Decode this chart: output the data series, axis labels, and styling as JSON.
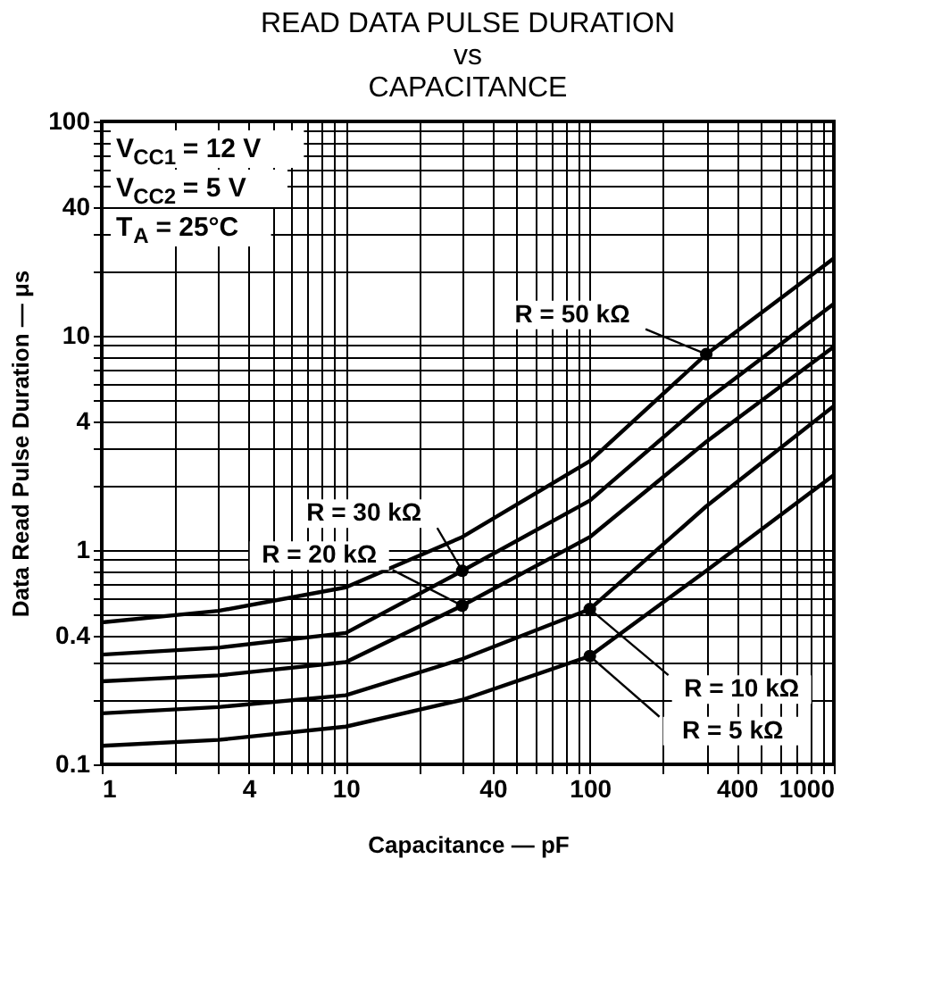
{
  "chart_data": {
    "type": "line",
    "title": "READ DATA PULSE DURATION\nvs\nCAPACITANCE",
    "xlabel": "Capacitance — pF",
    "ylabel": "Data Read Pulse Duration — μs",
    "annotations": [
      "V$_{CC1}$ = 12 V",
      "V$_{CC2}$ = 5 V",
      "T$_{A}$ = 25°C"
    ],
    "x": [
      1,
      3,
      10,
      30,
      100,
      300,
      1000
    ],
    "series": [
      {
        "name": "R = 50 kΩ",
        "color": "#000000",
        "values": [
          0.46,
          0.52,
          0.67,
          1.15,
          2.6,
          8.2,
          23
        ]
      },
      {
        "name": "R = 30 kΩ",
        "color": "#000000",
        "values": [
          0.325,
          0.35,
          0.41,
          0.8,
          1.7,
          5.0,
          14.1
        ]
      },
      {
        "name": "R = 20 kΩ",
        "color": "#000000",
        "values": [
          0.244,
          0.26,
          0.3,
          0.55,
          1.15,
          3.2,
          8.9
        ]
      },
      {
        "name": "R = 10 kΩ",
        "color": "#000000",
        "values": [
          0.173,
          0.185,
          0.21,
          0.31,
          0.53,
          1.6,
          4.7
        ]
      },
      {
        "name": "R = 5 kΩ",
        "color": "#000000",
        "values": [
          0.122,
          0.13,
          0.15,
          0.2,
          0.32,
          0.8,
          2.24
        ]
      }
    ],
    "log": "xy",
    "grid": true,
    "line_style": "solid",
    "xlim": [
      1,
      1000
    ],
    "ylim": [
      0.1,
      100
    ],
    "xticks": [
      1,
      {
        "value": 2,
        "label": null
      },
      {
        "value": 3,
        "label": null
      },
      4,
      {
        "value": 5,
        "label": null
      },
      {
        "value": 6,
        "label": null
      },
      {
        "value": 7,
        "label": null
      },
      {
        "value": 8,
        "label": null
      },
      {
        "value": 9,
        "label": null
      },
      10,
      {
        "value": 20,
        "label": null
      },
      {
        "value": 30,
        "label": null
      },
      40,
      {
        "value": 50,
        "label": null
      },
      {
        "value": 60,
        "label": null
      },
      {
        "value": 70,
        "label": null
      },
      {
        "value": 80,
        "label": null
      },
      {
        "value": 90,
        "label": null
      },
      100,
      {
        "value": 200,
        "label": null
      },
      {
        "value": 300,
        "label": null
      },
      400,
      {
        "value": 500,
        "label": null
      },
      {
        "value": 600,
        "label": null
      },
      {
        "value": 700,
        "label": null
      },
      {
        "value": 800,
        "label": null
      },
      {
        "value": 900,
        "label": null
      },
      1000
    ],
    "yticks": [
      0.1,
      {
        "value": 0.2,
        "label": null
      },
      {
        "value": 0.3,
        "label": null
      },
      0.4,
      {
        "value": 0.5,
        "label": null
      },
      {
        "value": 0.6,
        "label": null
      },
      {
        "value": 0.7,
        "label": null
      },
      {
        "value": 0.8,
        "label": null
      },
      {
        "value": 0.9,
        "label": null
      },
      1,
      {
        "value": 2,
        "label": null
      },
      {
        "value": 3,
        "label": null
      },
      4,
      {
        "value": 5,
        "label": null
      },
      {
        "value": 6,
        "label": null
      },
      {
        "value": 7,
        "label": null
      },
      {
        "value": 8,
        "label": null
      },
      {
        "value": 9,
        "label": null
      },
      10,
      {
        "value": 20,
        "label": null
      },
      {
        "value": 30,
        "label": null
      },
      40,
      {
        "value": 50,
        "label": null
      },
      {
        "value": 60,
        "label": null
      },
      {
        "value": 70,
        "label": null
      },
      {
        "value": 80,
        "label": null
      },
      {
        "value": 90,
        "label": null
      },
      100
    ]
  }
}
